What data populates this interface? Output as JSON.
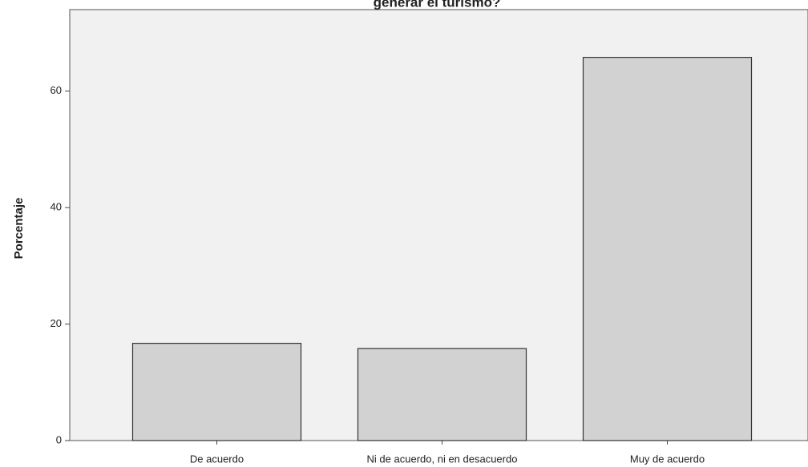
{
  "chart_data": {
    "type": "bar",
    "title": "generar el turismo?",
    "y_label": "Porcentaje",
    "categories": [
      "De acuerdo",
      "Ni de acuerdo, ni en desacuerdo",
      "Muy de acuerdo"
    ],
    "values": [
      16.7,
      15.8,
      65.8
    ],
    "color": "#d2d2d2",
    "ylim": [
      0,
      74
    ],
    "yticks": [
      0,
      20,
      40,
      60
    ],
    "grid": false
  }
}
